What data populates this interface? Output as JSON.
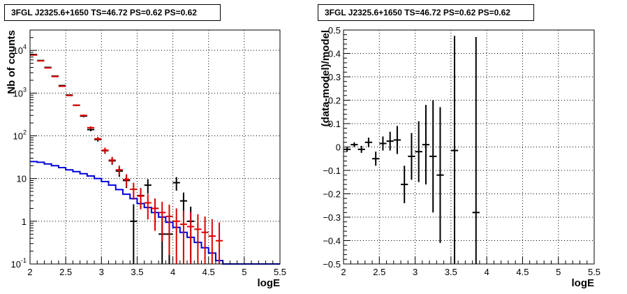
{
  "chart_data": [
    {
      "type": "scatter",
      "title": "3FGL J2325.6+1650 TS=46.72 PS=0.62 PS=0.62",
      "xlabel": "logE",
      "ylabel": "Nb of counts",
      "xlim": [
        2,
        5.5
      ],
      "ylim": [
        0.1,
        30000
      ],
      "yscale": "log",
      "grid": true,
      "x_ticks": [
        "2",
        "2.5",
        "3",
        "3.5",
        "4",
        "4.5",
        "5",
        "5.5"
      ],
      "y_ticks": [
        {
          "v": 0.1,
          "base": "10",
          "exp": "-1"
        },
        {
          "v": 1,
          "base": "1",
          "exp": ""
        },
        {
          "v": 10,
          "base": "10",
          "exp": ""
        },
        {
          "v": 100,
          "base": "10",
          "exp": "2"
        },
        {
          "v": 1000,
          "base": "10",
          "exp": "3"
        },
        {
          "v": 10000,
          "base": "10",
          "exp": "4"
        }
      ],
      "colors": {
        "data": "#000000",
        "model": "#dd0000",
        "background": "#0000dd"
      },
      "series": [
        {
          "style": "black-points",
          "x": [
            2.05,
            2.15,
            2.25,
            2.35,
            2.45,
            2.55,
            2.65,
            2.75,
            2.85,
            2.95,
            3.05,
            3.15,
            3.25,
            3.35,
            3.45,
            3.55,
            3.65,
            3.75,
            3.85,
            3.95,
            4.05,
            4.15,
            4.25,
            4.35,
            4.45,
            4.55
          ],
          "y": [
            8000,
            5800,
            4000,
            2500,
            1500,
            900,
            520,
            290,
            140,
            82,
            45,
            26,
            15,
            9,
            1,
            4,
            7,
            2,
            0.5,
            0.5,
            8,
            3,
            1,
            0,
            0,
            0
          ],
          "yerr_lo": [
            100,
            80,
            60,
            50,
            40,
            30,
            23,
            17,
            12,
            9,
            7,
            5,
            4,
            3,
            0.99,
            2,
            2.6,
            1.4,
            0.49,
            0.49,
            2.8,
            1.7,
            0.99,
            0,
            0,
            0
          ],
          "yerr_hi": [
            100,
            80,
            60,
            50,
            40,
            30,
            23,
            17,
            12,
            9,
            7,
            5,
            4,
            3,
            1.5,
            2,
            2.6,
            1.4,
            0.7,
            0.7,
            2.8,
            1.7,
            1.2,
            0,
            0,
            0
          ]
        },
        {
          "style": "red-model",
          "x": [
            2.05,
            2.15,
            2.25,
            2.35,
            2.45,
            2.55,
            2.65,
            2.75,
            2.85,
            2.95,
            3.05,
            3.15,
            3.25,
            3.35,
            3.45,
            3.55,
            3.65,
            3.75,
            3.85,
            3.95,
            4.05,
            4.15,
            4.25,
            4.35,
            4.45,
            4.55,
            4.65
          ],
          "y": [
            7800,
            5700,
            3900,
            2450,
            1450,
            880,
            520,
            300,
            155,
            85,
            46,
            27,
            16,
            9.5,
            5.6,
            3.9,
            2.7,
            2.0,
            1.6,
            1.3,
            1.0,
            0.85,
            0.75,
            0.65,
            0.55,
            0.45,
            0.35
          ],
          "yerr_lo": [
            90,
            75,
            62,
            50,
            38,
            30,
            23,
            17,
            12.5,
            9.2,
            6.8,
            5.2,
            4.0,
            3.1,
            2.4,
            2.0,
            1.6,
            1.4,
            1.26,
            1.14,
            1.0,
            0.84,
            0.74,
            0.64,
            0.54,
            0.44,
            0.34
          ],
          "yerr_hi": [
            90,
            75,
            62,
            50,
            38,
            30,
            23,
            17,
            12.5,
            9.2,
            6.8,
            5.2,
            4.0,
            3.1,
            2.4,
            2.0,
            1.6,
            1.4,
            1.26,
            1.14,
            1.0,
            0.92,
            0.87,
            0.81,
            0.74,
            0.67,
            0.59
          ]
        },
        {
          "style": "blue-step",
          "edges": [
            2.0,
            2.1,
            2.2,
            2.3,
            2.4,
            2.5,
            2.6,
            2.7,
            2.8,
            2.9,
            3.0,
            3.1,
            3.2,
            3.3,
            3.4,
            3.5,
            3.6,
            3.7,
            3.8,
            3.9,
            4.0,
            4.1,
            4.2,
            4.3,
            4.4,
            4.5,
            4.6,
            4.7,
            5.5
          ],
          "y": [
            25,
            24,
            22,
            20,
            18,
            16,
            14.5,
            13,
            11.5,
            10,
            8.5,
            7,
            5.5,
            4.3,
            3.4,
            2.6,
            2.1,
            1.6,
            1.25,
            0.95,
            0.72,
            0.55,
            0.42,
            0.32,
            0.24,
            0.18,
            0.12,
            0.1
          ]
        }
      ]
    },
    {
      "type": "scatter",
      "title": "3FGL J2325.6+1650 TS=46.72 PS=0.62 PS=0.62",
      "xlabel": "logE",
      "ylabel": "(data-model)/model",
      "xlim": [
        2,
        5.5
      ],
      "ylim": [
        -0.5,
        0.5
      ],
      "grid": true,
      "x_ticks": [
        "2",
        "2.5",
        "3",
        "3.5",
        "4",
        "4.5",
        "5",
        "5.5"
      ],
      "y_ticks": [
        "0.5",
        "0.4",
        "0.3",
        "0.2",
        "0.1",
        "0",
        "−0.1",
        "−0.2",
        "−0.3",
        "−0.4",
        "−0.5"
      ],
      "series": [
        {
          "style": "black-points",
          "x": [
            2.05,
            2.15,
            2.25,
            2.35,
            2.45,
            2.55,
            2.65,
            2.75,
            2.85,
            2.95,
            3.05,
            3.15,
            3.25,
            3.35,
            3.55,
            3.85
          ],
          "y": [
            -0.01,
            0.01,
            -0.01,
            0.02,
            -0.05,
            0.015,
            0.025,
            0.03,
            -0.16,
            -0.04,
            -0.02,
            0.01,
            -0.04,
            -0.12,
            -0.015,
            -0.28
          ],
          "yerr_lo": [
            0.01,
            0.01,
            0.015,
            0.02,
            0.03,
            0.03,
            0.04,
            0.06,
            0.08,
            0.1,
            0.13,
            0.17,
            0.24,
            0.29,
            0.6,
            0.6
          ],
          "yerr_hi": [
            0.01,
            0.01,
            0.015,
            0.02,
            0.03,
            0.03,
            0.04,
            0.06,
            0.08,
            0.1,
            0.13,
            0.17,
            0.24,
            0.29,
            0.49,
            0.75
          ]
        }
      ]
    }
  ]
}
